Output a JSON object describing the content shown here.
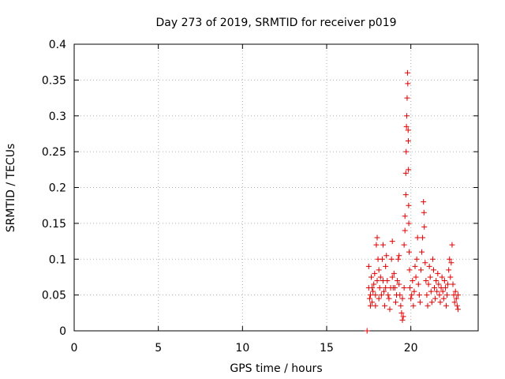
{
  "chart_data": {
    "type": "scatter",
    "title": "Day 273 of 2019, SRMTID for receiver p019",
    "xlabel": "GPS time / hours",
    "ylabel": "SRMTID / TECUs",
    "xlim": [
      0,
      24
    ],
    "ylim": [
      0,
      0.4
    ],
    "x_ticks": [
      0,
      5,
      10,
      15,
      20
    ],
    "x_tick_labels": [
      "0",
      "5",
      "10",
      "15",
      "20"
    ],
    "y_ticks": [
      0,
      0.05,
      0.1,
      0.15,
      0.2,
      0.25,
      0.3,
      0.35,
      0.4
    ],
    "y_tick_labels": [
      "0",
      "0.05",
      "0.1",
      "0.15",
      "0.2",
      "0.25",
      "0.3",
      "0.35",
      "0.4"
    ],
    "grid": true,
    "marker": "+",
    "color": "#e00000",
    "series": [
      {
        "name": "SRMTID",
        "points": [
          [
            17.4,
            0.0
          ],
          [
            17.5,
            0.09
          ],
          [
            17.5,
            0.06
          ],
          [
            17.55,
            0.045
          ],
          [
            17.6,
            0.05
          ],
          [
            17.6,
            0.035
          ],
          [
            17.65,
            0.075
          ],
          [
            17.7,
            0.06
          ],
          [
            17.7,
            0.04
          ],
          [
            17.75,
            0.055
          ],
          [
            17.8,
            0.065
          ],
          [
            17.85,
            0.08
          ],
          [
            17.9,
            0.05
          ],
          [
            17.9,
            0.035
          ],
          [
            17.95,
            0.12
          ],
          [
            18.0,
            0.13
          ],
          [
            18.0,
            0.07
          ],
          [
            18.05,
            0.1
          ],
          [
            18.1,
            0.085
          ],
          [
            18.1,
            0.045
          ],
          [
            18.15,
            0.06
          ],
          [
            18.2,
            0.075
          ],
          [
            18.25,
            0.05
          ],
          [
            18.3,
            0.1
          ],
          [
            18.35,
            0.12
          ],
          [
            18.35,
            0.07
          ],
          [
            18.4,
            0.055
          ],
          [
            18.45,
            0.035
          ],
          [
            18.5,
            0.06
          ],
          [
            18.5,
            0.09
          ],
          [
            18.55,
            0.105
          ],
          [
            18.6,
            0.07
          ],
          [
            18.65,
            0.05
          ],
          [
            18.7,
            0.045
          ],
          [
            18.75,
            0.03
          ],
          [
            18.8,
            0.06
          ],
          [
            18.85,
            0.1
          ],
          [
            18.9,
            0.125
          ],
          [
            18.9,
            0.075
          ],
          [
            18.95,
            0.06
          ],
          [
            19.0,
            0.08
          ],
          [
            19.05,
            0.06
          ],
          [
            19.1,
            0.04
          ],
          [
            19.15,
            0.05
          ],
          [
            19.2,
            0.07
          ],
          [
            19.25,
            0.1
          ],
          [
            19.3,
            0.105
          ],
          [
            19.3,
            0.065
          ],
          [
            19.35,
            0.05
          ],
          [
            19.4,
            0.035
          ],
          [
            19.45,
            0.025
          ],
          [
            19.5,
            0.015
          ],
          [
            19.5,
            0.045
          ],
          [
            19.55,
            0.02
          ],
          [
            19.6,
            0.06
          ],
          [
            19.6,
            0.12
          ],
          [
            19.65,
            0.14
          ],
          [
            19.65,
            0.16
          ],
          [
            19.7,
            0.19
          ],
          [
            19.7,
            0.22
          ],
          [
            19.72,
            0.25
          ],
          [
            19.74,
            0.285
          ],
          [
            19.76,
            0.3
          ],
          [
            19.78,
            0.325
          ],
          [
            19.8,
            0.36
          ],
          [
            19.82,
            0.345
          ],
          [
            19.84,
            0.28
          ],
          [
            19.85,
            0.265
          ],
          [
            19.86,
            0.225
          ],
          [
            19.87,
            0.175
          ],
          [
            19.88,
            0.15
          ],
          [
            19.9,
            0.11
          ],
          [
            19.92,
            0.085
          ],
          [
            19.95,
            0.06
          ],
          [
            20.0,
            0.045
          ],
          [
            20.05,
            0.05
          ],
          [
            20.1,
            0.07
          ],
          [
            20.15,
            0.035
          ],
          [
            20.2,
            0.055
          ],
          [
            20.25,
            0.09
          ],
          [
            20.3,
            0.075
          ],
          [
            20.35,
            0.1
          ],
          [
            20.4,
            0.13
          ],
          [
            20.45,
            0.065
          ],
          [
            20.5,
            0.05
          ],
          [
            20.55,
            0.04
          ],
          [
            20.6,
            0.085
          ],
          [
            20.65,
            0.11
          ],
          [
            20.7,
            0.13
          ],
          [
            20.75,
            0.18
          ],
          [
            20.78,
            0.165
          ],
          [
            20.8,
            0.145
          ],
          [
            20.85,
            0.095
          ],
          [
            20.9,
            0.07
          ],
          [
            20.95,
            0.05
          ],
          [
            21.0,
            0.035
          ],
          [
            21.05,
            0.065
          ],
          [
            21.1,
            0.09
          ],
          [
            21.15,
            0.075
          ],
          [
            21.2,
            0.055
          ],
          [
            21.25,
            0.04
          ],
          [
            21.3,
            0.1
          ],
          [
            21.35,
            0.085
          ],
          [
            21.4,
            0.06
          ],
          [
            21.45,
            0.045
          ],
          [
            21.5,
            0.07
          ],
          [
            21.55,
            0.055
          ],
          [
            21.6,
            0.08
          ],
          [
            21.65,
            0.065
          ],
          [
            21.7,
            0.05
          ],
          [
            21.75,
            0.04
          ],
          [
            21.8,
            0.06
          ],
          [
            21.85,
            0.075
          ],
          [
            21.9,
            0.055
          ],
          [
            21.95,
            0.045
          ],
          [
            22.0,
            0.07
          ],
          [
            22.05,
            0.06
          ],
          [
            22.1,
            0.035
          ],
          [
            22.15,
            0.05
          ],
          [
            22.2,
            0.065
          ],
          [
            22.25,
            0.085
          ],
          [
            22.3,
            0.1
          ],
          [
            22.35,
            0.075
          ],
          [
            22.4,
            0.095
          ],
          [
            22.45,
            0.12
          ],
          [
            22.5,
            0.065
          ],
          [
            22.55,
            0.05
          ],
          [
            22.6,
            0.04
          ],
          [
            22.65,
            0.055
          ],
          [
            22.7,
            0.045
          ],
          [
            22.75,
            0.035
          ],
          [
            22.8,
            0.03
          ],
          [
            22.8,
            0.05
          ]
        ]
      }
    ]
  }
}
